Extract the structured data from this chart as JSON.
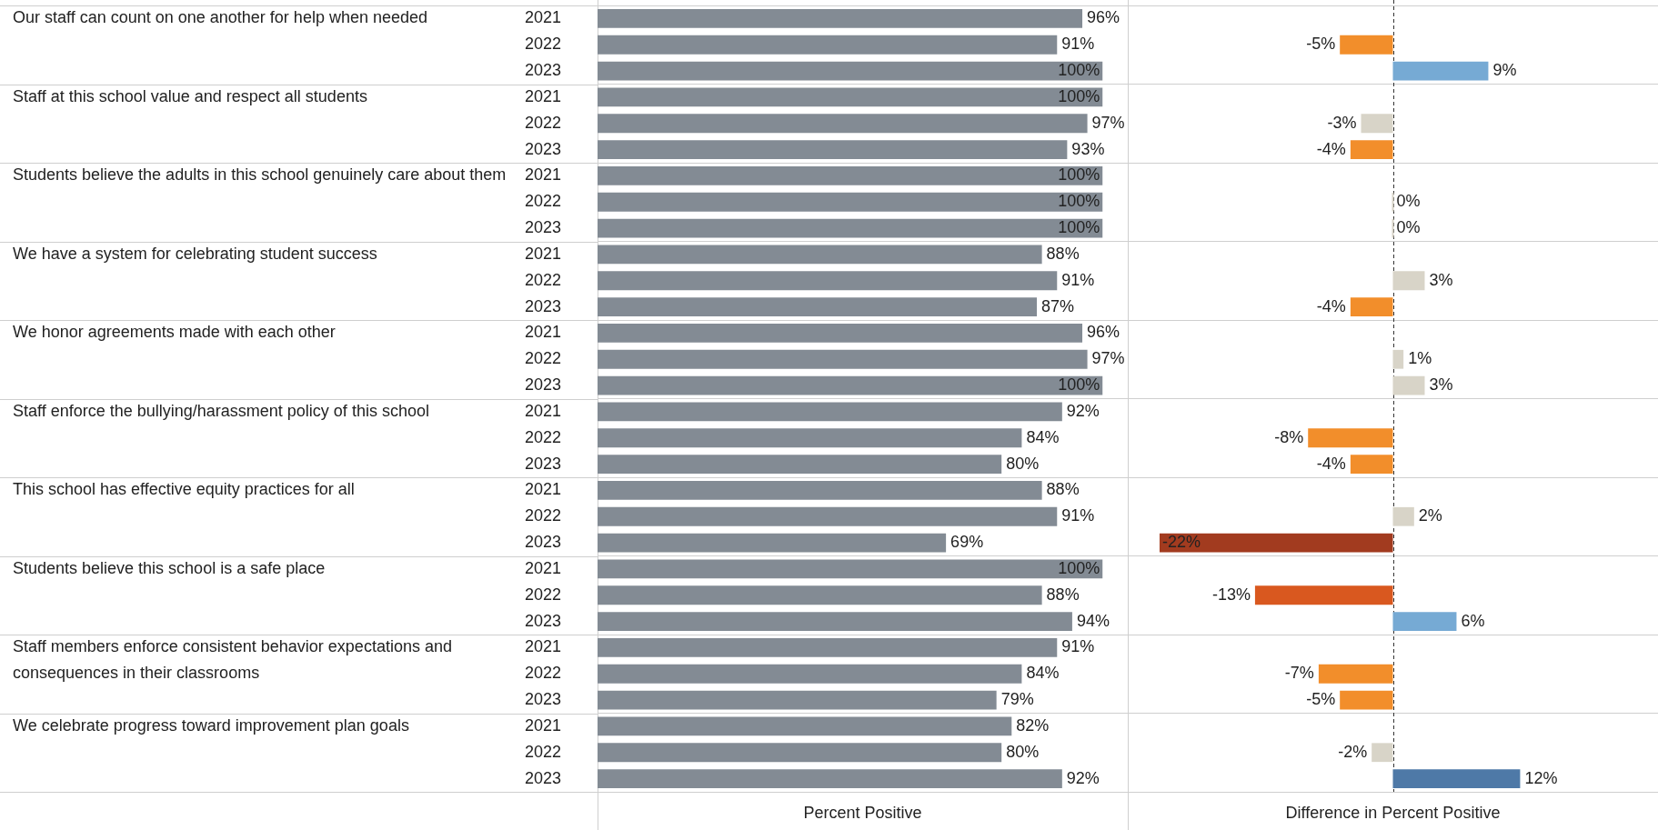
{
  "chart_data": [
    {
      "type": "bar",
      "orientation": "horizontal",
      "xlabel": "Percent Positive",
      "tick_labels": "y",
      "grid": "y",
      "xlim": [
        0,
        105
      ],
      "categories": [
        "Our staff can count on one another for help when needed",
        "Staff at this school value and respect all students",
        "Students believe the adults in this school genuinely care about them",
        "We have a system for celebrating student success",
        "We honor agreements made with each other",
        "Staff enforce the bullying/harassment policy of this school",
        "This school has effective equity practices for all",
        "Students believe this school is a safe place",
        "Staff members enforce consistent behavior expectations and consequences in their classrooms",
        "We celebrate progress toward improvement plan goals"
      ],
      "series": [
        {
          "name": "2021",
          "color": "#838b94",
          "values": [
            96,
            100,
            100,
            88,
            96,
            92,
            88,
            100,
            91,
            82
          ],
          "value_labels": [
            "96%",
            "100%",
            "100%",
            "88%",
            "96%",
            "92%",
            "88%",
            "100%",
            "91%",
            "82%"
          ]
        },
        {
          "name": "2022",
          "color": "#838b94",
          "values": [
            91,
            97,
            100,
            91,
            97,
            84,
            91,
            88,
            84,
            80
          ],
          "value_labels": [
            "91%",
            "97%",
            "100%",
            "91%",
            "97%",
            "84%",
            "91%",
            "88%",
            "84%",
            "80%"
          ]
        },
        {
          "name": "2023",
          "color": "#838b94",
          "values": [
            100,
            93,
            100,
            87,
            100,
            80,
            69,
            94,
            79,
            92
          ],
          "value_labels": [
            "100%",
            "93%",
            "100%",
            "87%",
            "100%",
            "80%",
            "69%",
            "94%",
            "79%",
            "92%"
          ]
        }
      ]
    },
    {
      "type": "bar",
      "orientation": "horizontal",
      "xlabel": "Difference in Percent Positive",
      "tick_labels": false,
      "grid": "y",
      "xlim": [
        -25,
        25
      ],
      "categories": [
        null,
        null,
        null,
        null,
        null,
        null,
        null,
        null,
        null,
        null
      ],
      "series": [
        {
          "values": [
            -5,
            -3,
            0,
            3,
            1,
            -8,
            2,
            -13,
            -7,
            -2
          ],
          "value_labels": [
            "-5%",
            "-3%",
            "0%",
            "3%",
            "1%",
            "-8%",
            "2%",
            "-13%",
            "-7%",
            "-2%"
          ],
          "colors": [
            "#f28e2b",
            "#d8d4c8",
            "#d8d4c8",
            "#d8d4c8",
            "#d8d4c8",
            "#f28e2b",
            "#d8d4c8",
            "#d9581f",
            "#f28e2b",
            "#d8d4c8"
          ]
        },
        {
          "values": [
            9,
            -4,
            0,
            -4,
            3,
            -4,
            -22,
            6,
            -5,
            12
          ],
          "value_labels": [
            "9%",
            "-4%",
            "0%",
            "-4%",
            "3%",
            "-4%",
            "-22%",
            "6%",
            "-5%",
            "12%"
          ],
          "colors": [
            "#76aad4",
            "#f28e2b",
            "#d8d4c8",
            "#f28e2b",
            "#d8d4c8",
            "#f28e2b",
            "#a23b1f",
            "#76aad4",
            "#f28e2b",
            "#4e79a7"
          ]
        }
      ],
      "ref_lines": [
        {
          "axis": "x",
          "value": 0,
          "line_style": "dashed",
          "color": "#333333"
        }
      ]
    }
  ]
}
